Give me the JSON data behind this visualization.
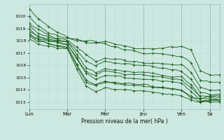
{
  "background_color": "#cce8e0",
  "grid_color_minor": "#b8ddd6",
  "grid_color_major": "#90c0b8",
  "line_color": "#1a5c1a",
  "ylabel": "Pression niveau de la mer( hPa )",
  "ylim": [
    1012.4,
    1021.0
  ],
  "yticks": [
    1013,
    1014,
    1015,
    1016,
    1017,
    1018,
    1019,
    1020
  ],
  "day_labels": [
    "Lun",
    "Mar",
    "Mer",
    "Jeu",
    "Ven",
    "Sa"
  ],
  "day_positions": [
    0,
    24,
    48,
    72,
    96,
    114
  ],
  "total_hours": 120,
  "lines": [
    {
      "anchors_x": [
        0,
        6,
        12,
        18,
        24,
        36,
        48,
        60,
        72,
        84,
        96,
        102,
        108,
        114
      ],
      "anchors_y": [
        1020.6,
        1019.8,
        1019.2,
        1018.7,
        1018.3,
        1018.0,
        1017.9,
        1017.6,
        1017.3,
        1017.4,
        1017.5,
        1017.3,
        1015.5,
        1015.2
      ]
    },
    {
      "anchors_x": [
        0,
        6,
        12,
        18,
        24,
        36,
        48,
        60,
        72,
        84,
        96,
        102,
        108,
        114
      ],
      "anchors_y": [
        1020.0,
        1019.2,
        1018.7,
        1018.4,
        1018.2,
        1017.9,
        1017.7,
        1017.3,
        1017.0,
        1016.9,
        1016.8,
        1016.2,
        1014.8,
        1014.6
      ]
    },
    {
      "anchors_x": [
        0,
        6,
        12,
        18,
        24,
        30,
        36,
        42,
        48,
        60,
        72,
        84,
        96,
        102,
        108,
        114
      ],
      "anchors_y": [
        1019.5,
        1018.9,
        1018.5,
        1018.2,
        1018.1,
        1017.5,
        1016.9,
        1016.3,
        1016.6,
        1016.4,
        1016.2,
        1016.1,
        1016.0,
        1015.4,
        1014.2,
        1014.0
      ]
    },
    {
      "anchors_x": [
        0,
        6,
        12,
        18,
        24,
        30,
        36,
        42,
        48,
        60,
        72,
        84,
        96,
        102,
        108,
        114
      ],
      "anchors_y": [
        1019.2,
        1018.6,
        1018.3,
        1018.1,
        1018.0,
        1017.2,
        1016.4,
        1016.0,
        1016.3,
        1016.1,
        1016.0,
        1015.8,
        1015.5,
        1014.9,
        1013.8,
        1013.6
      ]
    },
    {
      "anchors_x": [
        0,
        6,
        12,
        18,
        24,
        30,
        36,
        42,
        48,
        60,
        72,
        84,
        96,
        102,
        108,
        114
      ],
      "anchors_y": [
        1018.8,
        1018.4,
        1018.2,
        1018.0,
        1017.9,
        1016.9,
        1015.8,
        1015.4,
        1015.7,
        1015.5,
        1015.4,
        1015.2,
        1015.0,
        1014.4,
        1013.4,
        1013.2
      ]
    },
    {
      "anchors_x": [
        0,
        6,
        12,
        18,
        24,
        30,
        36,
        42,
        48,
        60,
        72,
        84,
        96,
        102,
        108,
        114
      ],
      "anchors_y": [
        1018.5,
        1018.2,
        1018.0,
        1017.8,
        1017.7,
        1016.5,
        1015.3,
        1014.9,
        1015.2,
        1015.0,
        1014.9,
        1014.7,
        1014.5,
        1013.9,
        1013.1,
        1013.0
      ]
    },
    {
      "anchors_x": [
        0,
        6,
        12,
        18,
        24,
        30,
        36,
        42,
        48,
        60,
        72,
        84,
        96,
        102,
        108,
        114
      ],
      "anchors_y": [
        1018.3,
        1018.0,
        1017.8,
        1017.6,
        1017.5,
        1016.1,
        1014.8,
        1014.4,
        1014.7,
        1014.5,
        1014.4,
        1014.2,
        1014.0,
        1013.5,
        1013.0,
        1013.1
      ]
    },
    {
      "anchors_x": [
        0,
        6,
        12,
        18,
        24,
        30,
        36,
        42,
        48,
        60,
        72,
        84,
        96,
        102,
        108,
        114
      ],
      "anchors_y": [
        1018.1,
        1017.8,
        1017.6,
        1017.4,
        1017.3,
        1015.7,
        1014.3,
        1013.9,
        1014.2,
        1014.0,
        1013.9,
        1013.7,
        1013.5,
        1013.1,
        1013.0,
        1013.2
      ]
    },
    {
      "anchors_x": [
        0,
        4,
        8,
        12,
        18,
        24,
        30,
        36,
        42,
        48,
        60,
        72,
        84,
        96,
        102,
        108,
        114
      ],
      "anchors_y": [
        1019.0,
        1018.5,
        1018.3,
        1018.1,
        1017.9,
        1017.7,
        1016.6,
        1015.5,
        1015.2,
        1015.5,
        1015.3,
        1015.2,
        1015.0,
        1014.8,
        1014.2,
        1013.5,
        1013.4
      ]
    },
    {
      "anchors_x": [
        0,
        4,
        8,
        12,
        18,
        24,
        30,
        36,
        42,
        48,
        60,
        72,
        84,
        96,
        102,
        108,
        114
      ],
      "anchors_y": [
        1018.6,
        1018.2,
        1018.0,
        1017.8,
        1017.6,
        1017.4,
        1016.0,
        1014.6,
        1014.3,
        1014.6,
        1014.4,
        1014.3,
        1014.1,
        1013.9,
        1013.4,
        1013.2,
        1013.5
      ]
    }
  ]
}
